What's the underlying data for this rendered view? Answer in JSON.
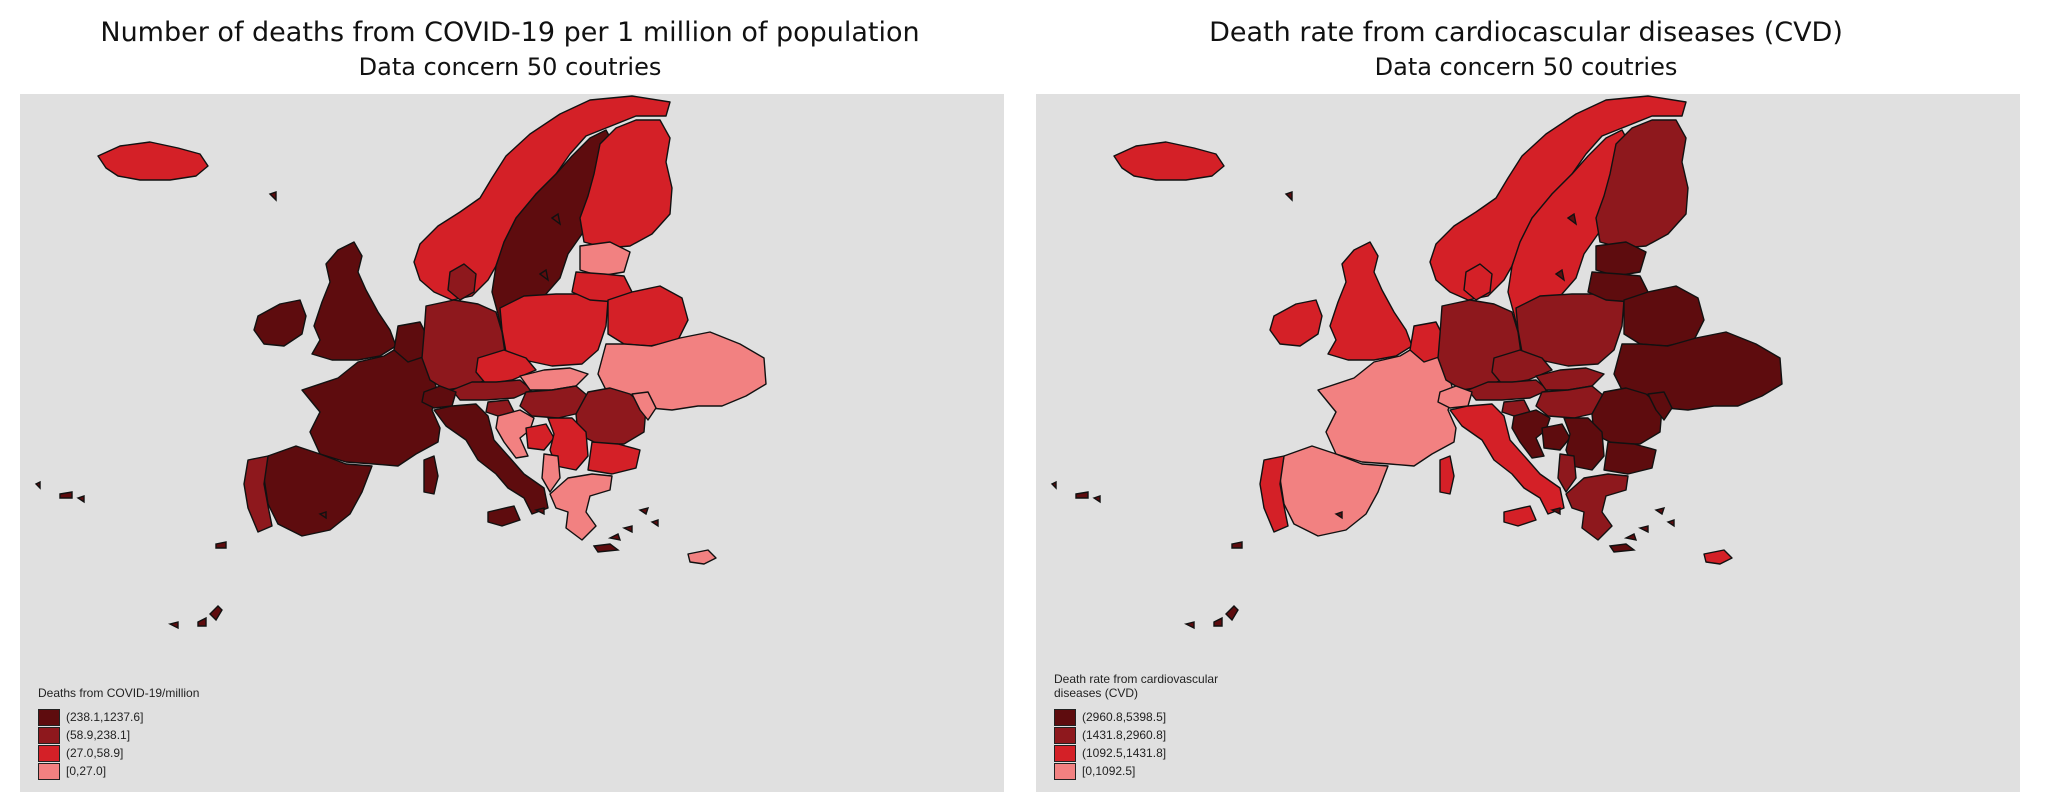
{
  "maps": [
    {
      "title": "Number of deaths from COVID-19 per 1 million of population",
      "subtitle": "Data concern 50 coutries",
      "legend": {
        "title": "Deaths from COVID-19/million",
        "classes": [
          {
            "label": "(238.1,1237.6]",
            "color": "#5e0c0e"
          },
          {
            "label": "(58.9,238.1]",
            "color": "#8e181d"
          },
          {
            "label": "(27.0,58.9]",
            "color": "#d42027"
          },
          {
            "label": "[0,27.0]",
            "color": "#f28181"
          }
        ]
      },
      "regions": {
        "iceland": "#d42027",
        "norway": "#d42027",
        "sweden": "#5e0c0e",
        "finland": "#d42027",
        "uk": "#5e0c0e",
        "ireland": "#5e0c0e",
        "france": "#5e0c0e",
        "spain": "#5e0c0e",
        "portugal": "#8e181d",
        "benelux": "#5e0c0e",
        "germany": "#8e181d",
        "denmark": "#8e181d",
        "poland": "#d42027",
        "czechia": "#d42027",
        "austria": "#8e181d",
        "switzerland": "#5e0c0e",
        "italy": "#5e0c0e",
        "balticN": "#f28181",
        "balticS": "#d42027",
        "belarus": "#d42027",
        "ukraine": "#f28181",
        "slovakia": "#f28181",
        "hungary": "#8e181d",
        "romania": "#8e181d",
        "moldova": "#f28181",
        "bulgaria": "#d42027",
        "slovenia": "#8e181d",
        "croatia": "#f28181",
        "bosnia": "#d42027",
        "serbia": "#d42027",
        "albania": "#f28181",
        "greece": "#f28181",
        "sardinia": "#5e0c0e",
        "sicily": "#5e0c0e",
        "cyprus": "#f28181"
      }
    },
    {
      "title": "Death rate from cardiocascular diseases (CVD)",
      "subtitle": "Data concern 50 coutries",
      "legend": {
        "title_line1": "Death rate from cardiovascular",
        "title_line2": "diseases (CVD)",
        "classes": [
          {
            "label": "(2960.8,5398.5]",
            "color": "#5e0c0e"
          },
          {
            "label": "(1431.8,2960.8]",
            "color": "#8e181d"
          },
          {
            "label": "(1092.5,1431.8]",
            "color": "#d42027"
          },
          {
            "label": "[0,1092.5]",
            "color": "#f28181"
          }
        ]
      },
      "regions": {
        "iceland": "#d42027",
        "norway": "#d42027",
        "sweden": "#d42027",
        "finland": "#8e181d",
        "uk": "#d42027",
        "ireland": "#d42027",
        "france": "#f28181",
        "spain": "#f28181",
        "portugal": "#d42027",
        "benelux": "#d42027",
        "germany": "#8e181d",
        "denmark": "#d42027",
        "poland": "#8e181d",
        "czechia": "#8e181d",
        "austria": "#8e181d",
        "switzerland": "#f28181",
        "italy": "#d42027",
        "balticN": "#5e0c0e",
        "balticS": "#5e0c0e",
        "belarus": "#5e0c0e",
        "ukraine": "#5e0c0e",
        "slovakia": "#8e181d",
        "hungary": "#8e181d",
        "romania": "#5e0c0e",
        "moldova": "#5e0c0e",
        "bulgaria": "#5e0c0e",
        "slovenia": "#8e181d",
        "croatia": "#5e0c0e",
        "bosnia": "#5e0c0e",
        "serbia": "#5e0c0e",
        "albania": "#8e181d",
        "greece": "#8e181d",
        "sardinia": "#d42027",
        "sicily": "#d42027",
        "cyprus": "#d42027"
      }
    }
  ]
}
